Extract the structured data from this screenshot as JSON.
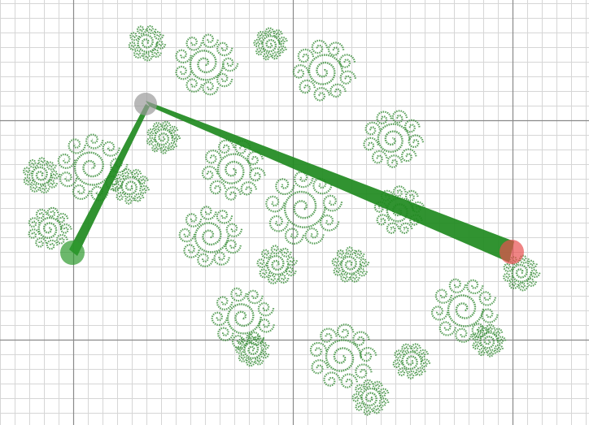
{
  "canvas": {
    "background": "#ffffff",
    "grid": {
      "visible": true,
      "minor_color": "#d6d6d6",
      "major_color": "#8a8a8a"
    }
  },
  "fractal": {
    "color": "#3d8f3d",
    "spiral_count": 12,
    "shape": "nested spirals"
  },
  "segments": {
    "color": "#1f8a1f"
  },
  "points": [
    {
      "name": "left-point",
      "color": "#2e9a2e"
    },
    {
      "name": "pivot-point",
      "color": "#9a9a9a"
    },
    {
      "name": "right-point",
      "color": "#e85050"
    }
  ]
}
